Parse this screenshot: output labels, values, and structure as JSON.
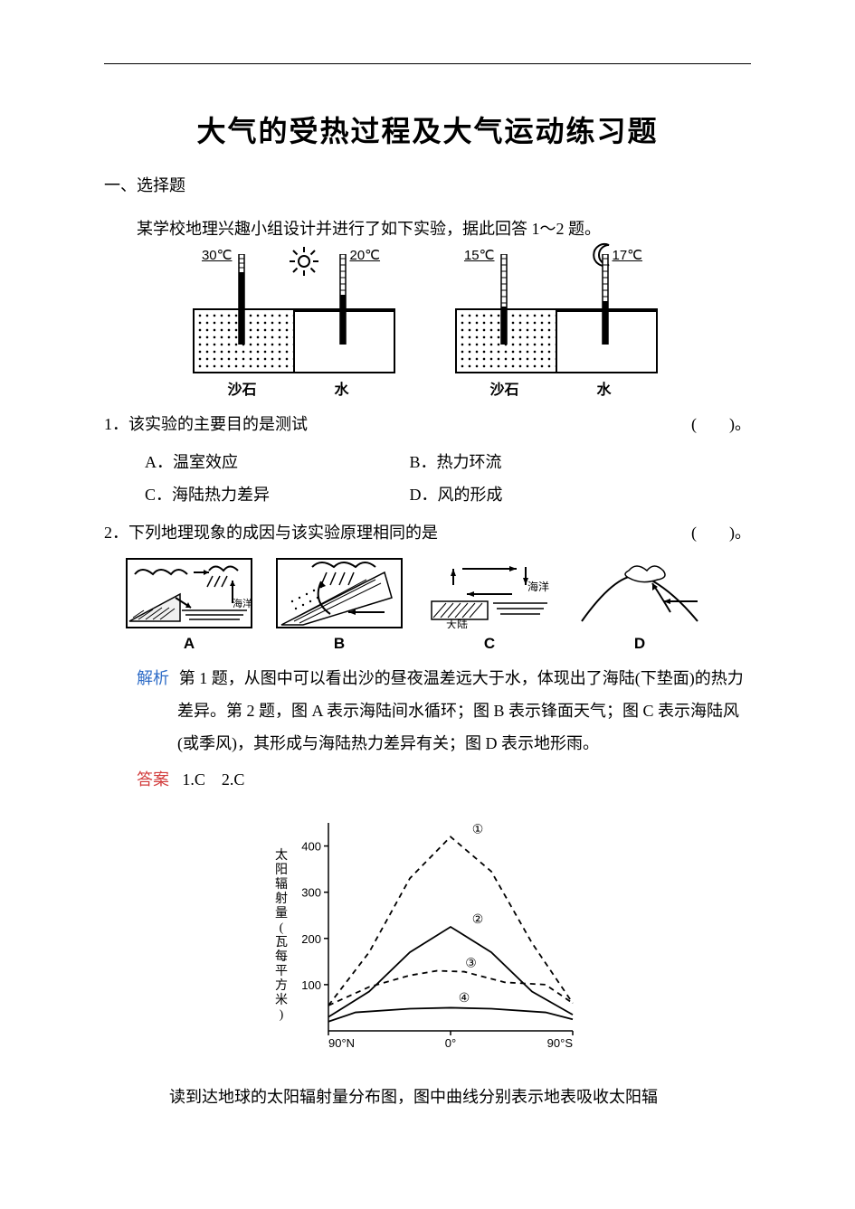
{
  "title": "大气的受热过程及大气运动练习题",
  "section1": "一、选择题",
  "intro": "某学校地理兴趣小组设计并进行了如下实验，据此回答 1～2 题。",
  "experiment": {
    "day": {
      "icon": "☼",
      "sand_temp": "30℃",
      "water_temp": "20℃"
    },
    "night": {
      "icon": "☽",
      "sand_temp": "15℃",
      "water_temp": "17℃"
    },
    "label_sand": "沙石",
    "label_water": "水",
    "box_border": "#000000",
    "thermo_mercury": "#000000"
  },
  "q1": {
    "text": "1．该实验的主要目的是测试",
    "paren": "(　　)。",
    "A": "A．温室效应",
    "B": "B．热力环流",
    "C": "C．海陆热力差异",
    "D": "D．风的形成"
  },
  "q2": {
    "text": "2．下列地理现象的成因与该实验原理相同的是",
    "paren": "(　　)。",
    "opt_labels": {
      "A": "A",
      "B": "B",
      "C": "C",
      "D": "D"
    },
    "optC_labels": {
      "land": "大陆",
      "ocean": "海洋"
    }
  },
  "analysis": {
    "label": "解析",
    "text": "第 1 题，从图中可以看出沙的昼夜温差远大于水，体现出了海陆(下垫面)的热力差异。第 2 题，图 A 表示海陆间水循环；图 B 表示锋面天气；图 C 表示海陆风(或季风)，其形成与海陆热力差异有关；图 D 表示地形雨。"
  },
  "answers": {
    "label": "答案",
    "text": "1.C　2.C"
  },
  "chart": {
    "ylabel": "太阳辐射量(瓦每平方米)",
    "yticks": [
      "100",
      "200",
      "300",
      "400"
    ],
    "xticks": [
      "90°N",
      "0°",
      "90°S"
    ],
    "curve_labels": [
      "①",
      "②",
      "③",
      "④"
    ],
    "line_styles": {
      "1": "dashed",
      "2": "solid",
      "3": "dashed",
      "4": "solid"
    },
    "line_color": "#000000",
    "grid_color": "#000000",
    "ylim": [
      0,
      450
    ],
    "xlim": [
      -90,
      90
    ],
    "series": {
      "1": [
        [
          -90,
          55
        ],
        [
          -60,
          170
        ],
        [
          -30,
          330
        ],
        [
          0,
          420
        ],
        [
          30,
          345
        ],
        [
          60,
          190
        ],
        [
          90,
          60
        ]
      ],
      "2": [
        [
          -90,
          30
        ],
        [
          -60,
          85
        ],
        [
          -30,
          170
        ],
        [
          0,
          225
        ],
        [
          30,
          170
        ],
        [
          60,
          85
        ],
        [
          90,
          35
        ]
      ],
      "3": [
        [
          -90,
          55
        ],
        [
          -60,
          95
        ],
        [
          -30,
          120
        ],
        [
          -10,
          130
        ],
        [
          10,
          128
        ],
        [
          40,
          105
        ],
        [
          70,
          100
        ],
        [
          90,
          60
        ]
      ],
      "4": [
        [
          -90,
          20
        ],
        [
          -70,
          40
        ],
        [
          -30,
          48
        ],
        [
          0,
          50
        ],
        [
          30,
          48
        ],
        [
          70,
          40
        ],
        [
          90,
          25
        ]
      ]
    }
  },
  "tail_para": "读到达地球的太阳辐射量分布图，图中曲线分别表示地表吸收太阳辐"
}
